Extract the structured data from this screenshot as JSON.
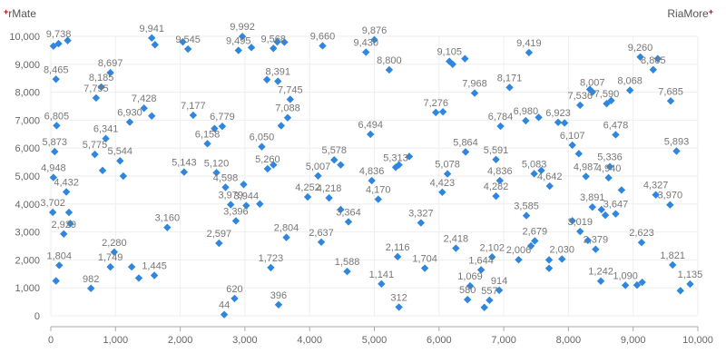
{
  "branding": {
    "left": {
      "mark": "+",
      "text": "rMate"
    },
    "right": {
      "text": "RiaMore",
      "mark": "+"
    }
  },
  "colors": {
    "point": "#2e86de",
    "label": "#777777",
    "brand_mark": "#c00000"
  },
  "chart_data": {
    "type": "scatter",
    "title": "",
    "xlabel": "",
    "ylabel": "",
    "xlim": [
      0,
      10000
    ],
    "ylim": [
      0,
      10000
    ],
    "x_ticks": [
      0,
      1000,
      2000,
      3000,
      4000,
      5000,
      6000,
      7000,
      8000,
      9000,
      10000
    ],
    "y_ticks": [
      0,
      1000,
      2000,
      3000,
      4000,
      5000,
      6000,
      7000,
      8000,
      9000,
      10000
    ],
    "grid": true,
    "legend": "none",
    "marker": "diamond",
    "points": [
      {
        "x": 120,
        "y": 9738,
        "label": "9,738"
      },
      {
        "x": 40,
        "y": 9650
      },
      {
        "x": 260,
        "y": 9850
      },
      {
        "x": 80,
        "y": 8465,
        "label": "8,465"
      },
      {
        "x": 90,
        "y": 6805,
        "label": "6,805"
      },
      {
        "x": 60,
        "y": 5873,
        "label": "5,873"
      },
      {
        "x": 40,
        "y": 4948,
        "label": "4,948"
      },
      {
        "x": 240,
        "y": 4432,
        "label": "4,432"
      },
      {
        "x": 30,
        "y": 3702,
        "label": "3,702"
      },
      {
        "x": 280,
        "y": 3700
      },
      {
        "x": 200,
        "y": 2929,
        "label": "2,929"
      },
      {
        "x": 130,
        "y": 1804,
        "label": "1,804"
      },
      {
        "x": 80,
        "y": 1250
      },
      {
        "x": 300,
        "y": 3300
      },
      {
        "x": 620,
        "y": 982,
        "label": "982"
      },
      {
        "x": 920,
        "y": 8697,
        "label": "8,697"
      },
      {
        "x": 780,
        "y": 8185,
        "label": "8,185"
      },
      {
        "x": 700,
        "y": 7795,
        "label": "7,795"
      },
      {
        "x": 850,
        "y": 6341,
        "label": "6,341"
      },
      {
        "x": 680,
        "y": 5775,
        "label": "5,775"
      },
      {
        "x": 1070,
        "y": 5544,
        "label": "5,544"
      },
      {
        "x": 1120,
        "y": 5000
      },
      {
        "x": 800,
        "y": 5200
      },
      {
        "x": 1220,
        "y": 6930,
        "label": "6,930"
      },
      {
        "x": 1440,
        "y": 7428,
        "label": "7,428"
      },
      {
        "x": 1560,
        "y": 7150
      },
      {
        "x": 980,
        "y": 2280,
        "label": "2,280"
      },
      {
        "x": 920,
        "y": 1749,
        "label": "1,749"
      },
      {
        "x": 1250,
        "y": 1750
      },
      {
        "x": 1360,
        "y": 1350
      },
      {
        "x": 1600,
        "y": 1445,
        "label": "1,445"
      },
      {
        "x": 1800,
        "y": 3160,
        "label": "3,160"
      },
      {
        "x": 1560,
        "y": 9941,
        "label": "9,941"
      },
      {
        "x": 1610,
        "y": 9700
      },
      {
        "x": 2120,
        "y": 9545,
        "label": "9,545"
      },
      {
        "x": 2040,
        "y": 9800
      },
      {
        "x": 2200,
        "y": 7177,
        "label": "7,177"
      },
      {
        "x": 2420,
        "y": 6158,
        "label": "6,158"
      },
      {
        "x": 2650,
        "y": 6779,
        "label": "6,779"
      },
      {
        "x": 2530,
        "y": 6700
      },
      {
        "x": 2060,
        "y": 5143,
        "label": "5,143"
      },
      {
        "x": 2560,
        "y": 5120,
        "label": "5,120"
      },
      {
        "x": 2700,
        "y": 4598,
        "label": "4,598"
      },
      {
        "x": 2780,
        "y": 3979,
        "label": "3,979"
      },
      {
        "x": 2980,
        "y": 4700
      },
      {
        "x": 2860,
        "y": 3396,
        "label": "3,396"
      },
      {
        "x": 3020,
        "y": 3944,
        "label": "3,944"
      },
      {
        "x": 2600,
        "y": 2597,
        "label": "2,597"
      },
      {
        "x": 2960,
        "y": 9992,
        "label": "9,992"
      },
      {
        "x": 2900,
        "y": 9495,
        "label": "9,495"
      },
      {
        "x": 3100,
        "y": 9600
      },
      {
        "x": 3440,
        "y": 9568,
        "label": "9,568"
      },
      {
        "x": 3500,
        "y": 9800
      },
      {
        "x": 3610,
        "y": 9790
      },
      {
        "x": 3510,
        "y": 8391,
        "label": "8,391"
      },
      {
        "x": 3340,
        "y": 8450
      },
      {
        "x": 3700,
        "y": 7745,
        "label": "7,745"
      },
      {
        "x": 3660,
        "y": 7088,
        "label": "7,088"
      },
      {
        "x": 3560,
        "y": 6800
      },
      {
        "x": 3260,
        "y": 6050,
        "label": "6,050"
      },
      {
        "x": 3350,
        "y": 5260,
        "label": "5,260"
      },
      {
        "x": 3440,
        "y": 5400
      },
      {
        "x": 3230,
        "y": 4000
      },
      {
        "x": 4200,
        "y": 9660,
        "label": "9,660"
      },
      {
        "x": 4130,
        "y": 5007,
        "label": "5,007"
      },
      {
        "x": 4380,
        "y": 5578,
        "label": "5,578"
      },
      {
        "x": 4480,
        "y": 5400
      },
      {
        "x": 3970,
        "y": 4252,
        "label": "4,252"
      },
      {
        "x": 4300,
        "y": 4218,
        "label": "4,218"
      },
      {
        "x": 4480,
        "y": 3800
      },
      {
        "x": 4600,
        "y": 3364,
        "label": "3,364"
      },
      {
        "x": 3640,
        "y": 2804,
        "label": "2,804"
      },
      {
        "x": 4180,
        "y": 2637,
        "label": "2,637"
      },
      {
        "x": 3400,
        "y": 1723,
        "label": "1,723"
      },
      {
        "x": 4580,
        "y": 1588,
        "label": "1,588"
      },
      {
        "x": 3520,
        "y": 396,
        "label": "396"
      },
      {
        "x": 2840,
        "y": 620,
        "label": "620"
      },
      {
        "x": 2680,
        "y": 44,
        "label": "44"
      },
      {
        "x": 4870,
        "y": 9430,
        "label": "9,430"
      },
      {
        "x": 5000,
        "y": 9876,
        "label": "9,876"
      },
      {
        "x": 5230,
        "y": 8800,
        "label": "8,800"
      },
      {
        "x": 4940,
        "y": 6494,
        "label": "6,494"
      },
      {
        "x": 4960,
        "y": 4836,
        "label": "4,836"
      },
      {
        "x": 5060,
        "y": 4170,
        "label": "4,170"
      },
      {
        "x": 5330,
        "y": 5313,
        "label": "5,313"
      },
      {
        "x": 5380,
        "y": 5400
      },
      {
        "x": 5540,
        "y": 5700
      },
      {
        "x": 5110,
        "y": 1141,
        "label": "1,141"
      },
      {
        "x": 5360,
        "y": 2116,
        "label": "2,116"
      },
      {
        "x": 5380,
        "y": 312,
        "label": "312"
      },
      {
        "x": 5720,
        "y": 3327,
        "label": "3,327"
      },
      {
        "x": 5780,
        "y": 1704,
        "label": "1,704"
      },
      {
        "x": 6160,
        "y": 9105,
        "label": "9,105"
      },
      {
        "x": 6210,
        "y": 9000
      },
      {
        "x": 6400,
        "y": 9200
      },
      {
        "x": 6550,
        "y": 7968,
        "label": "7,968"
      },
      {
        "x": 5950,
        "y": 7276,
        "label": "7,276"
      },
      {
        "x": 6060,
        "y": 7300
      },
      {
        "x": 6410,
        "y": 5864,
        "label": "5,864"
      },
      {
        "x": 6130,
        "y": 5078,
        "label": "5,078"
      },
      {
        "x": 6050,
        "y": 4423,
        "label": "4,423"
      },
      {
        "x": 6260,
        "y": 2418,
        "label": "2,418"
      },
      {
        "x": 6480,
        "y": 1069,
        "label": "1,069"
      },
      {
        "x": 6440,
        "y": 580,
        "label": "580"
      },
      {
        "x": 6650,
        "y": 1644,
        "label": "1,644"
      },
      {
        "x": 6780,
        "y": 557,
        "label": "557"
      },
      {
        "x": 6700,
        "y": 300
      },
      {
        "x": 6820,
        "y": 2102,
        "label": "2,102"
      },
      {
        "x": 6930,
        "y": 914,
        "label": "914"
      },
      {
        "x": 7090,
        "y": 8171,
        "label": "8,171"
      },
      {
        "x": 7390,
        "y": 9419,
        "label": "9,419"
      },
      {
        "x": 6950,
        "y": 6784,
        "label": "6,784"
      },
      {
        "x": 7340,
        "y": 6980,
        "label": "6,980"
      },
      {
        "x": 7540,
        "y": 7100
      },
      {
        "x": 6880,
        "y": 5591,
        "label": "5,591"
      },
      {
        "x": 6940,
        "y": 4836,
        "label": "4,836"
      },
      {
        "x": 6880,
        "y": 4282,
        "label": "4,282"
      },
      {
        "x": 7470,
        "y": 5083,
        "label": "5,083"
      },
      {
        "x": 7580,
        "y": 5200
      },
      {
        "x": 7710,
        "y": 4642,
        "label": "4,642"
      },
      {
        "x": 7350,
        "y": 3585,
        "label": "3,585"
      },
      {
        "x": 7480,
        "y": 2679,
        "label": "2,679"
      },
      {
        "x": 7420,
        "y": 2500
      },
      {
        "x": 7230,
        "y": 2006,
        "label": "2,006"
      },
      {
        "x": 7700,
        "y": 1700
      },
      {
        "x": 7700,
        "y": 2000
      },
      {
        "x": 7900,
        "y": 2030,
        "label": "2,030"
      },
      {
        "x": 7840,
        "y": 6923,
        "label": "6,923"
      },
      {
        "x": 7940,
        "y": 6900
      },
      {
        "x": 8180,
        "y": 7536,
        "label": "7,536"
      },
      {
        "x": 8370,
        "y": 8007,
        "label": "8,007"
      },
      {
        "x": 8330,
        "y": 8100
      },
      {
        "x": 8060,
        "y": 6107,
        "label": "6,107"
      },
      {
        "x": 8160,
        "y": 5800
      },
      {
        "x": 8270,
        "y": 4987,
        "label": "4,987"
      },
      {
        "x": 8370,
        "y": 3891,
        "label": "3,891"
      },
      {
        "x": 8180,
        "y": 3019,
        "label": "3,019"
      },
      {
        "x": 8060,
        "y": 3400
      },
      {
        "x": 8420,
        "y": 2379,
        "label": "2,379"
      },
      {
        "x": 8300,
        "y": 2700
      },
      {
        "x": 8500,
        "y": 1242,
        "label": "1,242"
      },
      {
        "x": 8590,
        "y": 7590,
        "label": "7,590"
      },
      {
        "x": 8660,
        "y": 7700
      },
      {
        "x": 8730,
        "y": 6478,
        "label": "6,478"
      },
      {
        "x": 8640,
        "y": 5336,
        "label": "5,336"
      },
      {
        "x": 8620,
        "y": 4940,
        "label": "4,940"
      },
      {
        "x": 8730,
        "y": 3647,
        "label": "3,647"
      },
      {
        "x": 8820,
        "y": 4500
      },
      {
        "x": 8510,
        "y": 3800
      },
      {
        "x": 8570,
        "y": 3600
      },
      {
        "x": 8880,
        "y": 1090,
        "label": "1,090"
      },
      {
        "x": 8950,
        "y": 8068,
        "label": "8,068"
      },
      {
        "x": 9110,
        "y": 9260,
        "label": "9,260"
      },
      {
        "x": 9310,
        "y": 8805,
        "label": "8,805"
      },
      {
        "x": 9380,
        "y": 9200
      },
      {
        "x": 9580,
        "y": 7685,
        "label": "7,685"
      },
      {
        "x": 9670,
        "y": 5893,
        "label": "5,893"
      },
      {
        "x": 9350,
        "y": 4327,
        "label": "4,327"
      },
      {
        "x": 9570,
        "y": 3970,
        "label": "3,970"
      },
      {
        "x": 9130,
        "y": 2623,
        "label": "2,623"
      },
      {
        "x": 9140,
        "y": 1200
      },
      {
        "x": 9060,
        "y": 1100
      },
      {
        "x": 9610,
        "y": 1821,
        "label": "1,821"
      },
      {
        "x": 9730,
        "y": 900
      },
      {
        "x": 9880,
        "y": 1135,
        "label": "1,135"
      }
    ]
  }
}
